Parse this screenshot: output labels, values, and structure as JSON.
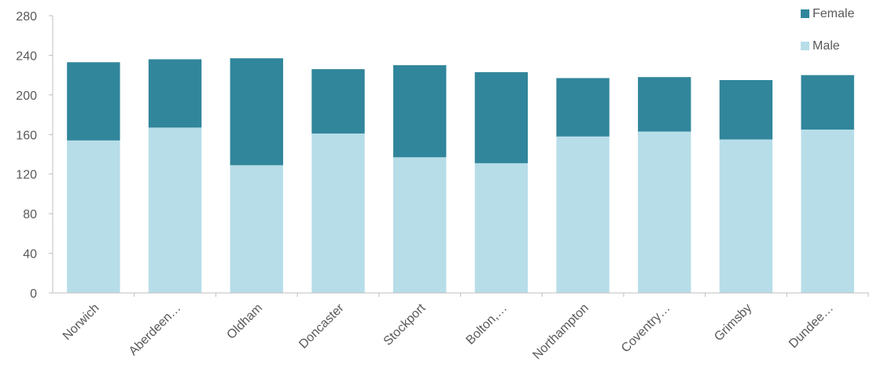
{
  "chart_data": {
    "type": "bar",
    "stacked": true,
    "title": "",
    "xlabel": "",
    "ylabel": "",
    "ylim": [
      0,
      280
    ],
    "yticks": [
      0,
      40,
      80,
      120,
      160,
      200,
      240,
      280
    ],
    "categories": [
      "Norwich",
      "Aberdeen…",
      "Oldham",
      "Doncaster",
      "Stockport",
      "Bolton,…",
      "Northampton",
      "Coventry…",
      "Grimsby",
      "Dundee…"
    ],
    "series": [
      {
        "name": "Male",
        "color": "#b7dde8",
        "values": [
          154,
          167,
          129,
          161,
          137,
          131,
          158,
          163,
          155,
          165
        ]
      },
      {
        "name": "Female",
        "color": "#31869b",
        "values": [
          79,
          69,
          108,
          65,
          93,
          92,
          59,
          55,
          60,
          55
        ]
      }
    ],
    "grid": false,
    "legend_position": "top-right"
  }
}
